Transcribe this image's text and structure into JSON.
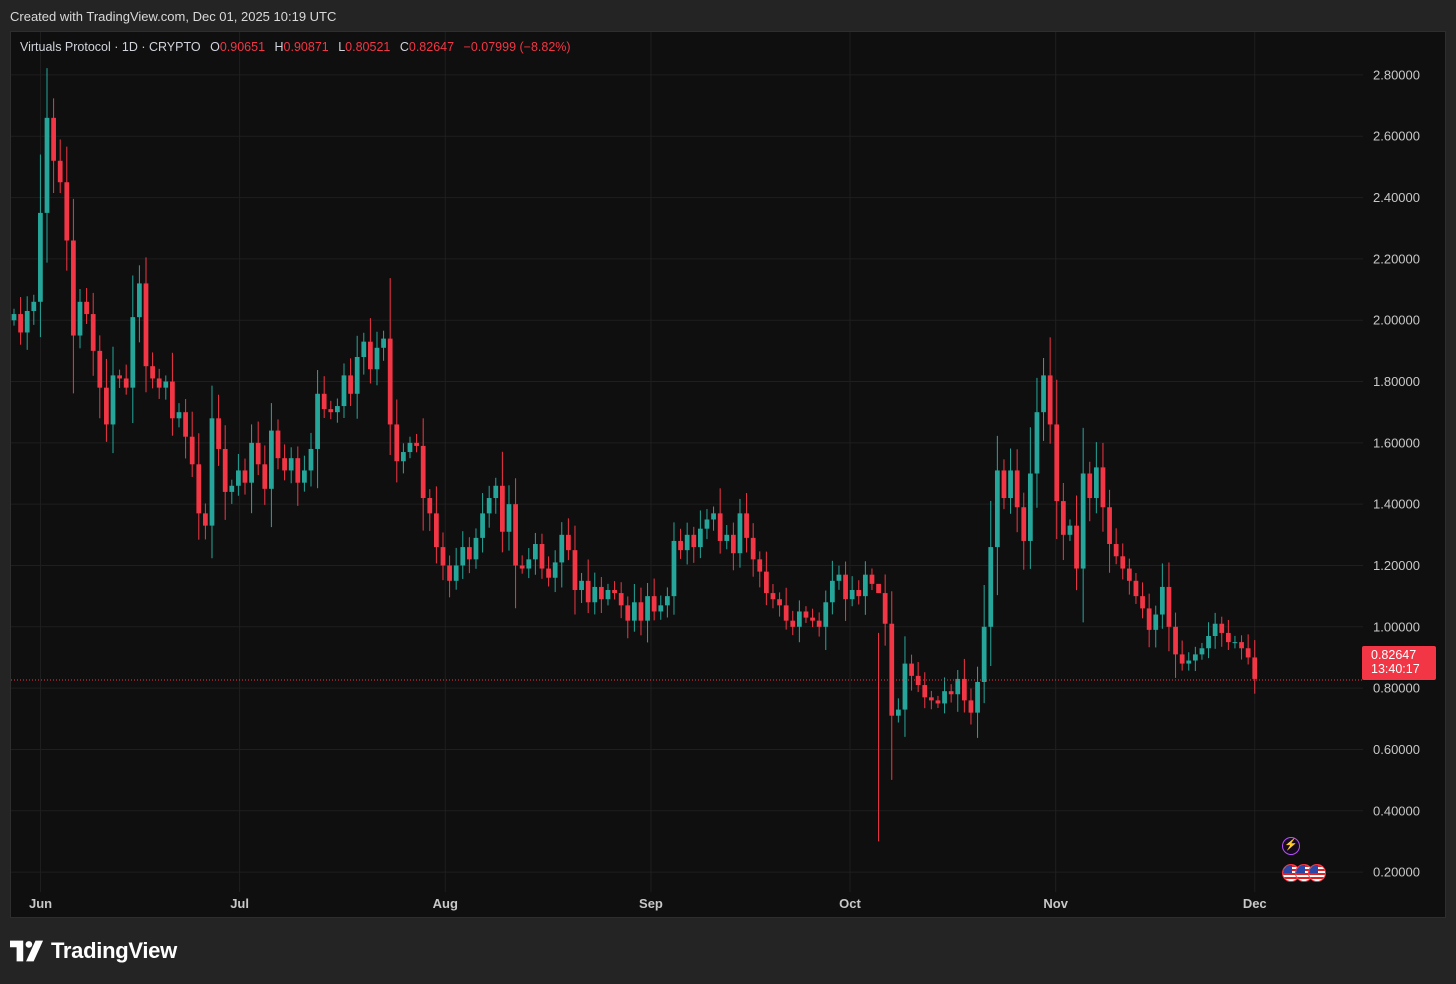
{
  "header": {
    "created_text": "Created with TradingView.com, Dec 01, 2025 10:19 UTC"
  },
  "legend": {
    "symbol": "Virtuals Protocol · 1D · CRYPTO",
    "o_label": "O",
    "o_value": "0.90651",
    "h_label": "H",
    "h_value": "0.90871",
    "l_label": "L",
    "l_value": "0.80521",
    "c_label": "C",
    "c_value": "0.82647",
    "change": "−0.07999 (−8.82%)"
  },
  "last_price": {
    "price": "0.82647",
    "countdown": "13:40:17"
  },
  "footer": {
    "brand": "TradingView"
  },
  "icons": {
    "events": [
      "lightning-event-icon",
      "us-flag-event-icon",
      "us-flag-event-icon",
      "us-flag-event-icon"
    ],
    "brand": "tradingview-logo-icon"
  },
  "colors": {
    "up": "#26a69a",
    "down": "#f23645",
    "background": "#0f0f0f",
    "grid": "#1f1f1f",
    "axis_text": "#c8c8c8"
  },
  "chart_data": {
    "type": "candlestick",
    "title": "Virtuals Protocol · 1D · CRYPTO",
    "interval": "1D",
    "y_ticks": [
      0.2,
      0.4,
      0.6,
      0.8,
      1.0,
      1.2,
      1.4,
      1.6,
      1.8,
      2.0,
      2.2,
      2.4,
      2.6,
      2.8
    ],
    "y_tick_labels": [
      "0.20000",
      "0.40000",
      "0.60000",
      "0.80000",
      "1.00000",
      "1.20000",
      "1.40000",
      "1.60000",
      "1.80000",
      "2.00000",
      "2.20000",
      "2.40000",
      "2.60000",
      "2.80000"
    ],
    "ylim": [
      0.06,
      2.94
    ],
    "x_ticks": [
      {
        "label": "Jun",
        "date": "2025-06-01"
      },
      {
        "label": "Jul",
        "date": "2025-07-01"
      },
      {
        "label": "Aug",
        "date": "2025-08-01"
      },
      {
        "label": "Sep",
        "date": "2025-09-01"
      },
      {
        "label": "Oct",
        "date": "2025-10-01"
      },
      {
        "label": "Nov",
        "date": "2025-11-01"
      },
      {
        "label": "Dec",
        "date": "2025-12-01"
      }
    ],
    "start_date": "2025-05-28",
    "end_date": "2025-12-01",
    "last_close": 0.82647,
    "closes": [
      2.02,
      1.96,
      2.03,
      2.06,
      2.35,
      2.66,
      2.52,
      2.45,
      2.26,
      1.95,
      2.06,
      2.02,
      1.9,
      1.78,
      1.66,
      1.82,
      1.81,
      1.78,
      2.01,
      2.12,
      1.85,
      1.81,
      1.78,
      1.8,
      1.68,
      1.7,
      1.62,
      1.53,
      1.37,
      1.33,
      1.68,
      1.58,
      1.44,
      1.46,
      1.51,
      1.47,
      1.6,
      1.53,
      1.45,
      1.64,
      1.55,
      1.51,
      1.55,
      1.47,
      1.51,
      1.58,
      1.76,
      1.71,
      1.7,
      1.72,
      1.82,
      1.76,
      1.88,
      1.93,
      1.84,
      1.91,
      1.94,
      1.66,
      1.54,
      1.57,
      1.6,
      1.59,
      1.42,
      1.37,
      1.26,
      1.2,
      1.15,
      1.2,
      1.26,
      1.22,
      1.29,
      1.37,
      1.42,
      1.46,
      1.31,
      1.4,
      1.2,
      1.19,
      1.22,
      1.27,
      1.19,
      1.16,
      1.21,
      1.3,
      1.25,
      1.12,
      1.15,
      1.08,
      1.13,
      1.09,
      1.12,
      1.11,
      1.07,
      1.02,
      1.08,
      1.02,
      1.1,
      1.05,
      1.07,
      1.1,
      1.28,
      1.25,
      1.3,
      1.26,
      1.32,
      1.35,
      1.37,
      1.28,
      1.3,
      1.24,
      1.37,
      1.29,
      1.22,
      1.18,
      1.11,
      1.09,
      1.07,
      1.02,
      1.0,
      1.05,
      1.03,
      1.02,
      1.0,
      1.08,
      1.15,
      1.17,
      1.09,
      1.12,
      1.1,
      1.17,
      1.14,
      1.11,
      1.01,
      0.71,
      0.73,
      0.88,
      0.84,
      0.81,
      0.77,
      0.76,
      0.75,
      0.79,
      0.78,
      0.83,
      0.76,
      0.72,
      0.82,
      1.0,
      1.26,
      1.51,
      1.42,
      1.51,
      1.39,
      1.28,
      1.5,
      1.7,
      1.82,
      1.66,
      1.41,
      1.3,
      1.33,
      1.19,
      1.5,
      1.42,
      1.52,
      1.39,
      1.27,
      1.23,
      1.19,
      1.15,
      1.1,
      1.06,
      0.99,
      1.04,
      1.13,
      1.0,
      0.91,
      0.88,
      0.89,
      0.91,
      0.93,
      0.97,
      1.01,
      0.98,
      0.95,
      0.95,
      0.93,
      0.9,
      0.83
    ],
    "y_range_days": {
      "day_131": {
        "high": 0.98,
        "low": 0.3
      }
    }
  }
}
